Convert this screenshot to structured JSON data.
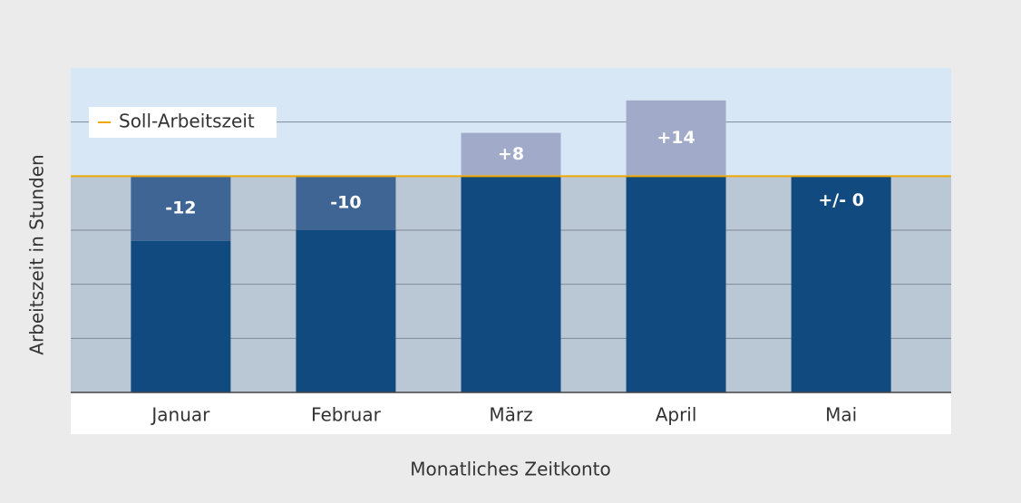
{
  "chart_data": {
    "type": "bar",
    "categories": [
      "Januar",
      "Februar",
      "März",
      "April",
      "Mai"
    ],
    "values": [
      -12,
      -10,
      8,
      14,
      0
    ],
    "value_labels": [
      "-12",
      "-10",
      "+8",
      "+14",
      "+/- 0"
    ],
    "color": "#114a7e",
    "negative_color": "#3f6594",
    "positive_color": "#a1abc9",
    "reference_line": {
      "name": "Soll-Arbeitszeit",
      "value": 0,
      "color": "#f0a800"
    },
    "ylabel": "Arbeitszeit in Stunden",
    "xlabel": "Monatliches Zeitkonto",
    "ylim": [
      -40,
      20
    ],
    "yticks": [
      -40,
      -30,
      -20,
      -10,
      0,
      10
    ],
    "grid": true
  }
}
